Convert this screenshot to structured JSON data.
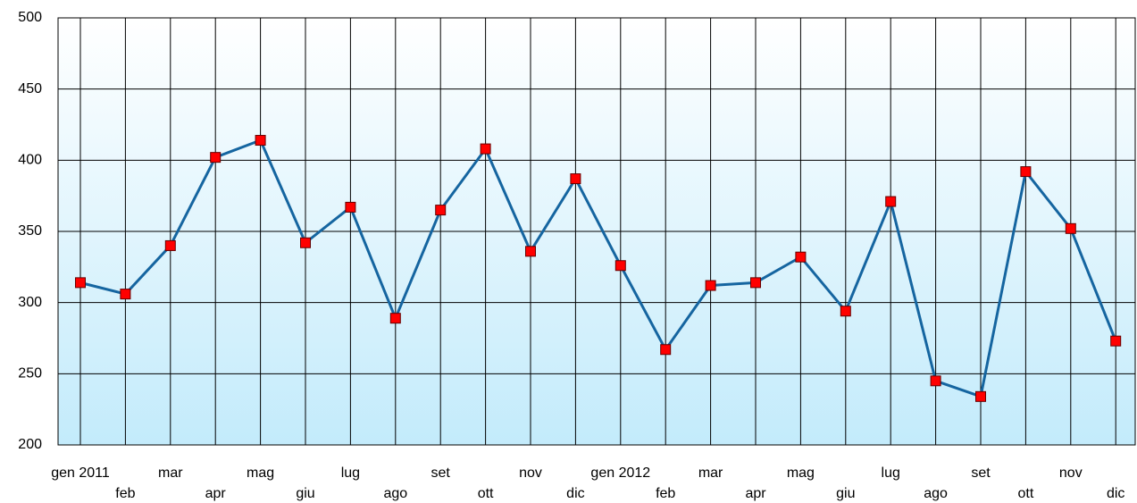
{
  "chart_data": {
    "type": "line",
    "categories": [
      "gen 2011",
      "feb",
      "mar",
      "apr",
      "mag",
      "giu",
      "lug",
      "ago",
      "set",
      "ott",
      "nov",
      "dic",
      "gen 2012",
      "feb",
      "mar",
      "apr",
      "mag",
      "giu",
      "lug",
      "ago",
      "set",
      "ott",
      "nov",
      "dic"
    ],
    "series": [
      {
        "color": "#1565a0",
        "marker_color": "#ff0000",
        "values": [
          314,
          306,
          340,
          402,
          414,
          342,
          367,
          289,
          365,
          408,
          336,
          387,
          326,
          267,
          312,
          314,
          332,
          294,
          371,
          245,
          234,
          392,
          352,
          273
        ]
      }
    ],
    "ylim": [
      200,
      500
    ],
    "yticks": [
      200,
      250,
      300,
      350,
      400,
      450,
      500
    ],
    "grid": true
  }
}
